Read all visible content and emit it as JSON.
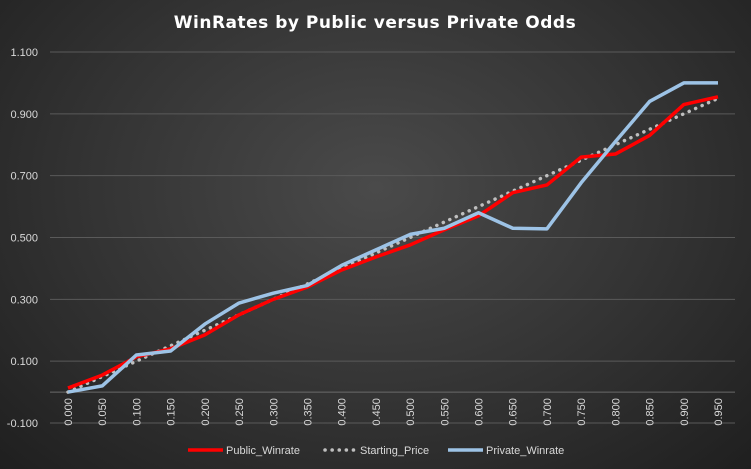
{
  "chart_data": {
    "type": "line",
    "title": "WinRates  by  Public  versus  Private  Odds",
    "xlabel": "",
    "ylabel": "",
    "ylim": [
      -0.1,
      1.1
    ],
    "yticks": [
      "-0.100",
      "0.100",
      "0.300",
      "0.500",
      "0.700",
      "0.900",
      "1.100"
    ],
    "ytick_values": [
      -0.1,
      0.1,
      0.3,
      0.5,
      0.7,
      0.9,
      1.1
    ],
    "categories": [
      "0.000",
      "0.050",
      "0.100",
      "0.150",
      "0.200",
      "0.250",
      "0.300",
      "0.350",
      "0.400",
      "0.450",
      "0.500",
      "0.550",
      "0.600",
      "0.650",
      "0.700",
      "0.750",
      "0.800",
      "0.850",
      "0.900",
      "0.950"
    ],
    "grid": true,
    "legend_position": "bottom",
    "series": [
      {
        "name": "Public_Winrate",
        "color": "#ff0000",
        "style": "solid",
        "values": [
          0.013,
          0.055,
          0.114,
          0.14,
          0.185,
          0.25,
          0.3,
          0.34,
          0.395,
          0.437,
          0.476,
          0.525,
          0.57,
          0.645,
          0.67,
          0.76,
          0.77,
          0.83,
          0.93,
          0.955
        ]
      },
      {
        "name": "Starting_Price",
        "color": "#bfbfbf",
        "style": "dotted",
        "values": [
          0.0,
          0.05,
          0.1,
          0.15,
          0.2,
          0.25,
          0.3,
          0.35,
          0.4,
          0.45,
          0.5,
          0.55,
          0.6,
          0.65,
          0.7,
          0.75,
          0.8,
          0.85,
          0.9,
          0.95
        ]
      },
      {
        "name": "Private_Winrate",
        "color": "#9dc3e6",
        "style": "solid",
        "values": [
          0.0,
          0.02,
          0.12,
          0.133,
          0.22,
          0.288,
          0.32,
          0.345,
          0.41,
          0.46,
          0.51,
          0.53,
          0.58,
          0.53,
          0.528,
          0.677,
          0.81,
          0.94,
          1.0,
          1.0
        ]
      }
    ]
  }
}
